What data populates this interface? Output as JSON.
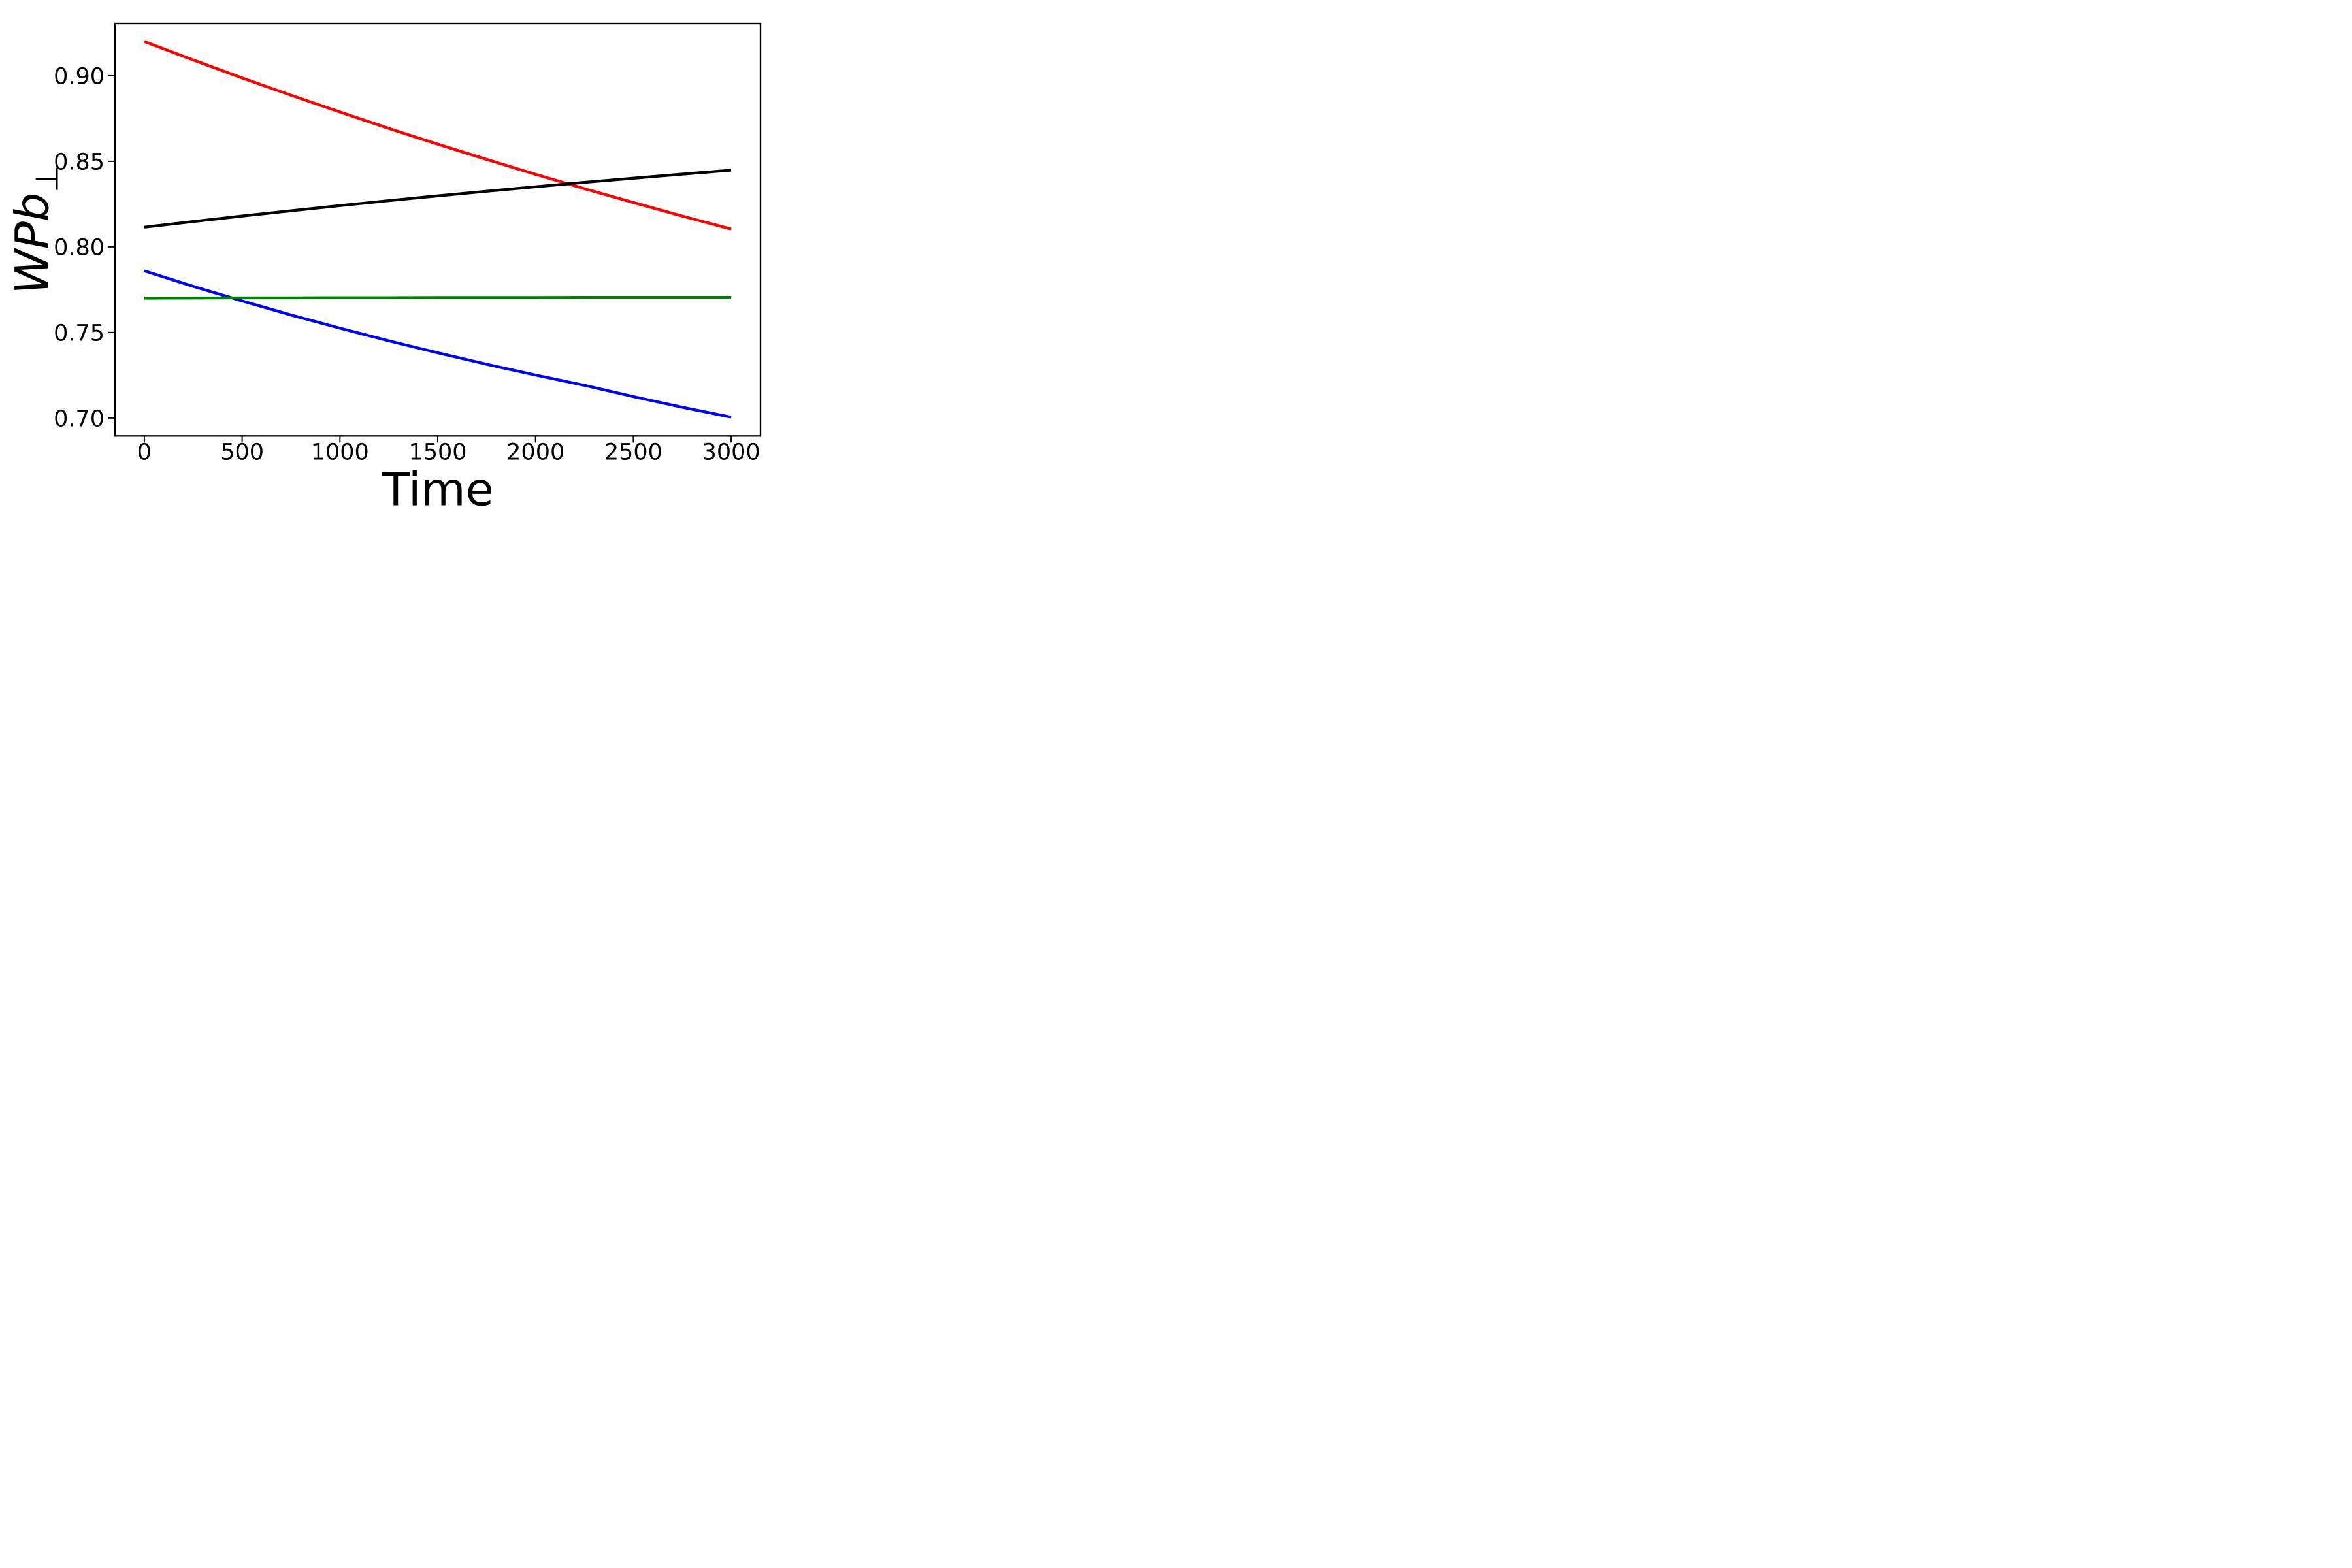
{
  "figure": {
    "background_color": "#ffffff",
    "axes_color": "#000000",
    "spine_line_width": 7,
    "tick_length": 30,
    "tick_width": 6,
    "series_line_width": 13
  },
  "chart_data": {
    "type": "line",
    "title": "",
    "xlabel": "Time",
    "ylabel": {
      "text": "WPb",
      "subscript": "⊥"
    },
    "xlim": [
      -150,
      3150
    ],
    "ylim": [
      0.6895,
      0.9305
    ],
    "grid": false,
    "legend": false,
    "xtick_values": [
      0,
      500,
      1000,
      1500,
      2000,
      2500,
      3000
    ],
    "xtick_labels": [
      "0",
      "500",
      "1000",
      "1500",
      "2000",
      "2500",
      "3000"
    ],
    "ytick_values": [
      0.7,
      0.75,
      0.8,
      0.85,
      0.9
    ],
    "ytick_labels": [
      "0.70",
      "0.75",
      "0.80",
      "0.85",
      "0.90"
    ],
    "x": [
      0,
      250,
      500,
      750,
      1000,
      1250,
      1500,
      1750,
      2000,
      2250,
      2500,
      2750,
      3000
    ],
    "series": [
      {
        "name": "red-line",
        "color": "#ff0000",
        "values": [
          0.92,
          0.9092,
          0.8987,
          0.8886,
          0.8788,
          0.8692,
          0.86,
          0.8511,
          0.8424,
          0.834,
          0.8259,
          0.818,
          0.8104
        ]
      },
      {
        "name": "black-line",
        "color": "#000000",
        "values": [
          0.8115,
          0.8148,
          0.818,
          0.8211,
          0.8241,
          0.827,
          0.8298,
          0.8325,
          0.8351,
          0.8377,
          0.8401,
          0.8425,
          0.8448
        ]
      },
      {
        "name": "blue-line",
        "color": "#0000ff",
        "values": [
          0.786,
          0.7769,
          0.7684,
          0.7602,
          0.7525,
          0.7451,
          0.7381,
          0.7314,
          0.7251,
          0.7191,
          0.7125,
          0.7063,
          0.7005
        ]
      },
      {
        "name": "green-line",
        "color": "#008000",
        "values": [
          0.77,
          0.7701,
          0.7702,
          0.7702,
          0.7703,
          0.7703,
          0.7704,
          0.7704,
          0.7704,
          0.7705,
          0.7705,
          0.7705,
          0.7705
        ]
      }
    ]
  }
}
